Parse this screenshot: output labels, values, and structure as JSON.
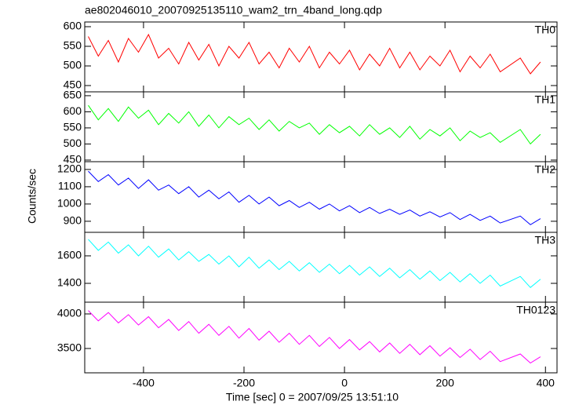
{
  "title": "ae802046010_20070925135110_wam2_trn_4band_long.qdp",
  "ylabel": "Counts/sec",
  "xlabel": "Time [sec] 0 = 2007/09/25 13:51:10",
  "chart_data": [
    {
      "type": "line",
      "label": "TH0",
      "xlim": [
        -517,
        423
      ],
      "ylim": [
        434,
        612
      ],
      "yticks": [
        450,
        500,
        550,
        600
      ],
      "x": [
        -510,
        -490,
        -470,
        -450,
        -430,
        -410,
        -390,
        -370,
        -350,
        -330,
        -310,
        -290,
        -270,
        -250,
        -230,
        -210,
        -190,
        -170,
        -150,
        -130,
        -110,
        -90,
        -70,
        -50,
        -30,
        -10,
        10,
        30,
        50,
        70,
        90,
        110,
        130,
        150,
        170,
        190,
        210,
        230,
        250,
        270,
        290,
        310,
        350,
        370,
        390
      ],
      "series": [
        {
          "color": "#ff0000",
          "values": [
            575,
            525,
            565,
            510,
            570,
            535,
            580,
            520,
            545,
            505,
            560,
            515,
            555,
            500,
            550,
            520,
            560,
            505,
            535,
            495,
            545,
            510,
            550,
            495,
            535,
            505,
            540,
            490,
            530,
            500,
            545,
            495,
            535,
            490,
            525,
            500,
            540,
            485,
            525,
            495,
            530,
            485,
            520,
            480,
            510
          ]
        }
      ]
    },
    {
      "type": "line",
      "label": "TH1",
      "xlim": [
        -517,
        423
      ],
      "ylim": [
        445,
        662
      ],
      "yticks": [
        450,
        500,
        550,
        600,
        650
      ],
      "x": [
        -510,
        -490,
        -470,
        -450,
        -430,
        -410,
        -390,
        -370,
        -350,
        -330,
        -310,
        -290,
        -270,
        -250,
        -230,
        -210,
        -190,
        -170,
        -150,
        -130,
        -110,
        -90,
        -70,
        -50,
        -30,
        -10,
        10,
        30,
        50,
        70,
        90,
        110,
        130,
        150,
        170,
        190,
        210,
        230,
        250,
        270,
        290,
        310,
        350,
        370,
        390
      ],
      "series": [
        {
          "color": "#00ff00",
          "values": [
            620,
            575,
            610,
            570,
            615,
            580,
            605,
            560,
            595,
            565,
            600,
            555,
            590,
            550,
            585,
            560,
            580,
            545,
            575,
            540,
            570,
            550,
            565,
            530,
            560,
            535,
            555,
            525,
            560,
            530,
            550,
            520,
            555,
            515,
            545,
            525,
            550,
            510,
            540,
            520,
            535,
            505,
            545,
            500,
            530
          ]
        }
      ]
    },
    {
      "type": "line",
      "label": "TH2",
      "xlim": [
        -517,
        423
      ],
      "ylim": [
        836,
        1245
      ],
      "yticks": [
        900,
        1000,
        1100,
        1200
      ],
      "x": [
        -510,
        -490,
        -470,
        -450,
        -430,
        -410,
        -390,
        -370,
        -350,
        -330,
        -310,
        -290,
        -270,
        -250,
        -230,
        -210,
        -190,
        -170,
        -150,
        -130,
        -110,
        -90,
        -70,
        -50,
        -30,
        -10,
        10,
        30,
        50,
        70,
        90,
        110,
        130,
        150,
        170,
        190,
        210,
        230,
        250,
        270,
        290,
        310,
        350,
        370,
        390
      ],
      "series": [
        {
          "color": "#0000ff",
          "values": [
            1190,
            1130,
            1170,
            1110,
            1150,
            1090,
            1140,
            1080,
            1110,
            1060,
            1100,
            1040,
            1080,
            1030,
            1070,
            1010,
            1050,
            1000,
            1040,
            990,
            1020,
            980,
            1010,
            970,
            1000,
            960,
            990,
            950,
            980,
            945,
            970,
            940,
            965,
            930,
            955,
            925,
            950,
            910,
            940,
            905,
            930,
            890,
            930,
            880,
            915
          ]
        }
      ]
    },
    {
      "type": "line",
      "label": "TH3",
      "xlim": [
        -517,
        423
      ],
      "ylim": [
        1263,
        1771
      ],
      "yticks": [
        1400,
        1600
      ],
      "x": [
        -510,
        -490,
        -470,
        -450,
        -430,
        -410,
        -390,
        -370,
        -350,
        -330,
        -310,
        -290,
        -270,
        -250,
        -230,
        -210,
        -190,
        -170,
        -150,
        -130,
        -110,
        -90,
        -70,
        -50,
        -30,
        -10,
        10,
        30,
        50,
        70,
        90,
        110,
        130,
        150,
        170,
        190,
        210,
        230,
        250,
        270,
        290,
        310,
        350,
        370,
        390
      ],
      "series": [
        {
          "color": "#00ffff",
          "values": [
            1720,
            1640,
            1700,
            1620,
            1680,
            1600,
            1670,
            1590,
            1650,
            1570,
            1630,
            1560,
            1610,
            1540,
            1600,
            1520,
            1590,
            1510,
            1570,
            1500,
            1560,
            1490,
            1550,
            1480,
            1540,
            1470,
            1530,
            1460,
            1520,
            1450,
            1510,
            1440,
            1500,
            1430,
            1490,
            1420,
            1480,
            1410,
            1470,
            1400,
            1460,
            1380,
            1450,
            1370,
            1430
          ]
        }
      ]
    },
    {
      "type": "line",
      "label": "TH0123",
      "xlim": [
        -517,
        423
      ],
      "ylim": [
        3148,
        4170
      ],
      "yticks": [
        3500,
        4000
      ],
      "xticks": [
        -400,
        -200,
        0,
        200,
        400
      ],
      "x": [
        -510,
        -490,
        -470,
        -450,
        -430,
        -410,
        -390,
        -370,
        -350,
        -330,
        -310,
        -290,
        -270,
        -250,
        -230,
        -210,
        -190,
        -170,
        -150,
        -130,
        -110,
        -90,
        -70,
        -50,
        -30,
        -10,
        10,
        30,
        50,
        70,
        90,
        110,
        130,
        150,
        170,
        190,
        210,
        230,
        250,
        270,
        290,
        310,
        350,
        370,
        390
      ],
      "series": [
        {
          "color": "#ff00ff",
          "values": [
            4050,
            3900,
            4020,
            3870,
            3990,
            3840,
            3960,
            3800,
            3920,
            3760,
            3890,
            3720,
            3850,
            3690,
            3820,
            3650,
            3790,
            3620,
            3750,
            3590,
            3720,
            3560,
            3690,
            3530,
            3660,
            3500,
            3630,
            3480,
            3600,
            3450,
            3580,
            3430,
            3560,
            3410,
            3540,
            3390,
            3510,
            3370,
            3490,
            3340,
            3460,
            3310,
            3420,
            3290,
            3380
          ]
        }
      ]
    }
  ]
}
